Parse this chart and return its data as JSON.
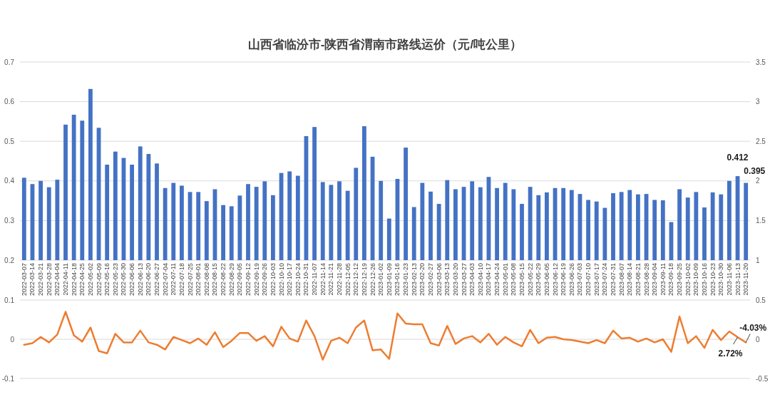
{
  "chart_data": [
    {
      "type": "bar",
      "title": "山西省临汾市-陕西省渭南市路线运价（元/吨公里）",
      "grid": "y",
      "ylim": [
        0.2,
        0.7
      ],
      "yticks": [
        0.2,
        0.3,
        0.4,
        0.5,
        0.6,
        0.7
      ],
      "y2lim": [
        1,
        3.5
      ],
      "y2ticks": [
        1,
        1.5,
        2,
        2.5,
        3,
        3.5
      ],
      "categories": [
        "2022-03-07",
        "2022-03-14",
        "2022-03-21",
        "2022-03-28",
        "2022-04-04",
        "2022-04-11",
        "2022-04-18",
        "2022-04-25",
        "2022-05-02",
        "2022-05-09",
        "2022-05-16",
        "2022-05-23",
        "2022-05-30",
        "2022-06-06",
        "2022-06-13",
        "2022-06-20",
        "2022-06-27",
        "2022-07-04",
        "2022-07-11",
        "2022-07-18",
        "2022-07-25",
        "2022-08-01",
        "2022-08-08",
        "2022-08-15",
        "2022-08-22",
        "2022-08-29",
        "2022-09-05",
        "2022-09-12",
        "2022-09-19",
        "2022-09-26",
        "2022-10-03",
        "2022-10-10",
        "2022-10-17",
        "2022-10-24",
        "2022-10-31",
        "2022-11-07",
        "2022-11-14",
        "2022-11-21",
        "2022-11-28",
        "2022-12-05",
        "2022-12-12",
        "2022-12-19",
        "2022-12-26",
        "2023-01-02",
        "2023-01-09",
        "2023-01-16",
        "2023-01-23",
        "2023-02-13",
        "2023-02-20",
        "2023-02-27",
        "2023-03-06",
        "2023-03-13",
        "2023-03-20",
        "2023-03-27",
        "2023-04-03",
        "2023-04-10",
        "2023-04-17",
        "2023-04-24",
        "2023-05-01",
        "2023-05-08",
        "2023-05-15",
        "2023-05-22",
        "2023-05-29",
        "2023-06-05",
        "2023-06-12",
        "2023-06-19",
        "2023-06-26",
        "2023-07-03",
        "2023-07-10",
        "2023-07-17",
        "2023-07-24",
        "2023-07-31",
        "2023-08-07",
        "2023-08-14",
        "2023-08-21",
        "2023-08-28",
        "2023-09-04",
        "2023-09-11",
        "2023-09-18",
        "2023-09-25",
        "2023-10-02",
        "2023-10-09",
        "2023-10-16",
        "2023-10-23",
        "2023-10-30",
        "2023-11-06",
        "2023-11-13",
        "2023-11-20"
      ],
      "series": [
        {
          "color": "#4472c4",
          "values": [
            0.408,
            0.392,
            0.4,
            0.384,
            0.403,
            0.542,
            0.567,
            0.552,
            0.632,
            0.534,
            0.441,
            0.474,
            0.458,
            0.441,
            0.487,
            0.468,
            0.444,
            0.382,
            0.395,
            0.388,
            0.372,
            0.372,
            0.349,
            0.379,
            0.339,
            0.336,
            0.363,
            0.392,
            0.385,
            0.399,
            0.364,
            0.42,
            0.424,
            0.413,
            0.513,
            0.536,
            0.397,
            0.39,
            0.399,
            0.375,
            0.433,
            0.538,
            0.461,
            0.4,
            0.305,
            0.405,
            0.484,
            0.334,
            0.395,
            0.373,
            0.342,
            0.402,
            0.379,
            0.385,
            0.399,
            0.384,
            0.41,
            0.382,
            0.395,
            0.379,
            0.342,
            0.385,
            0.364,
            0.371,
            0.382,
            0.382,
            0.377,
            0.367,
            0.352,
            0.348,
            0.332,
            0.369,
            0.372,
            0.377,
            0.366,
            0.367,
            0.352,
            0.351,
            0.296,
            0.379,
            0.358,
            0.372,
            0.333,
            0.371,
            0.366,
            0.4,
            0.412,
            0.395
          ],
          "value_labels": [
            null,
            null,
            null,
            null,
            null,
            null,
            null,
            null,
            null,
            null,
            null,
            null,
            null,
            null,
            null,
            null,
            null,
            null,
            null,
            null,
            null,
            null,
            null,
            null,
            null,
            null,
            null,
            null,
            null,
            null,
            null,
            null,
            null,
            null,
            null,
            null,
            null,
            null,
            null,
            null,
            null,
            null,
            null,
            null,
            null,
            null,
            null,
            null,
            null,
            null,
            null,
            null,
            null,
            null,
            null,
            null,
            null,
            null,
            null,
            null,
            null,
            null,
            null,
            null,
            null,
            null,
            null,
            null,
            null,
            null,
            null,
            null,
            null,
            null,
            null,
            null,
            null,
            null,
            null,
            null,
            null,
            null,
            null,
            null,
            null,
            null,
            "0.412",
            "0.395"
          ]
        }
      ]
    },
    {
      "type": "line",
      "grid": "y",
      "tick_labels": "y",
      "ylim": [
        -0.1,
        0.1
      ],
      "yticks": [
        -0.1,
        0,
        0.1
      ],
      "y2lim": [
        -0.5,
        0.5
      ],
      "y2ticks": [
        -0.5,
        0,
        0.5
      ],
      "categories": [
        null,
        null,
        null,
        null,
        null,
        null,
        null,
        null,
        null,
        null,
        null,
        null,
        null,
        null,
        null,
        null,
        null,
        null,
        null,
        null,
        null,
        null,
        null,
        null,
        null,
        null,
        null,
        null,
        null,
        null,
        null,
        null,
        null,
        null,
        null,
        null,
        null,
        null,
        null,
        null,
        null,
        null,
        null,
        null,
        null,
        null,
        null,
        null,
        null,
        null,
        null,
        null,
        null,
        null,
        null,
        null,
        null,
        null,
        null,
        null,
        null,
        null,
        null,
        null,
        null,
        null,
        null,
        null,
        null,
        null,
        null,
        null,
        null,
        null,
        null,
        null,
        null,
        null,
        null,
        null,
        null,
        null,
        null,
        null,
        null,
        null,
        null,
        null
      ],
      "series": [
        {
          "color": "#ed7d31",
          "axis": "y2",
          "values": [
            -0.07,
            -0.05,
            0.03,
            -0.04,
            0.06,
            0.35,
            0.05,
            -0.03,
            0.15,
            -0.15,
            -0.18,
            0.07,
            -0.04,
            -0.04,
            0.11,
            -0.04,
            -0.07,
            -0.13,
            0.03,
            -0.01,
            -0.05,
            0.01,
            -0.07,
            0.09,
            -0.1,
            -0.02,
            0.08,
            0.08,
            -0.02,
            0.04,
            -0.09,
            0.16,
            0.01,
            -0.03,
            0.24,
            0.04,
            -0.26,
            -0.02,
            0.02,
            -0.05,
            0.15,
            0.24,
            -0.14,
            -0.13,
            -0.25,
            0.33,
            0.2,
            0.19,
            0.19,
            -0.05,
            -0.08,
            0.17,
            -0.06,
            0.01,
            0.04,
            -0.04,
            0.07,
            -0.07,
            0.03,
            -0.04,
            -0.09,
            0.12,
            -0.05,
            0.02,
            0.03,
            0,
            -0.01,
            -0.03,
            -0.05,
            -0.01,
            -0.05,
            0.11,
            0.01,
            0.02,
            -0.03,
            0.01,
            -0.04,
            0,
            -0.16,
            0.29,
            -0.05,
            0.04,
            -0.11,
            0.12,
            -0.01,
            0.1,
            0.0272,
            -0.0403
          ],
          "value_labels": [
            null,
            null,
            null,
            null,
            null,
            null,
            null,
            null,
            null,
            null,
            null,
            null,
            null,
            null,
            null,
            null,
            null,
            null,
            null,
            null,
            null,
            null,
            null,
            null,
            null,
            null,
            null,
            null,
            null,
            null,
            null,
            null,
            null,
            null,
            null,
            null,
            null,
            null,
            null,
            null,
            null,
            null,
            null,
            null,
            null,
            null,
            null,
            null,
            null,
            null,
            null,
            null,
            null,
            null,
            null,
            null,
            null,
            null,
            null,
            null,
            null,
            null,
            null,
            null,
            null,
            null,
            null,
            null,
            null,
            null,
            null,
            null,
            null,
            null,
            null,
            null,
            null,
            null,
            null,
            null,
            null,
            null,
            null,
            null,
            null,
            null,
            "2.72%",
            "-4.03%"
          ]
        }
      ]
    }
  ]
}
